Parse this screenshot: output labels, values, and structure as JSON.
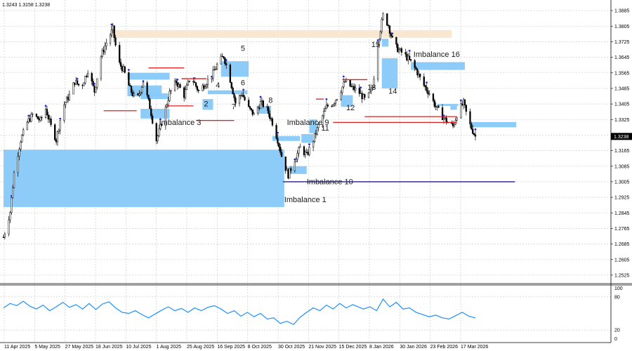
{
  "header": {
    "ohlc": "1.3243 1.3158 1.3238"
  },
  "price_label": "1.3238",
  "chart_data": [
    {
      "type": "candlestick",
      "title": "",
      "ylim": [
        1.2485,
        1.3925
      ],
      "y_ticks": [
        "1.3885",
        "1.3805",
        "1.3725",
        "1.3645",
        "1.3565",
        "1.3485",
        "1.3405",
        "1.3325",
        "1.3245",
        "1.3165",
        "1.3085",
        "1.3005",
        "1.2925",
        "1.2845",
        "1.2765",
        "1.2685",
        "1.2605",
        "1.2525"
      ],
      "x_ticks": [
        "11 Apr 2025",
        "5 May 2025",
        "27 May 2025",
        "18 Jun 2025",
        "10 Jul 2025",
        "1 Aug 2025",
        "25 Aug 2025",
        "16 Sep 2025",
        "8 Oct 2025",
        "30 Oct 2025",
        "21 Nov 2025",
        "15 Dec 2025",
        "8 Jan 2026",
        "30 Jan 2026",
        "23 Feb 2026",
        "17 Mar 2026"
      ],
      "x_range": [
        "2025-04-03",
        "2026-03-27"
      ],
      "close_path": [
        [
          "2025-04-03",
          1.272
        ],
        [
          "2025-04-08",
          1.285
        ],
        [
          "2025-04-11",
          1.305
        ],
        [
          "2025-04-16",
          1.322
        ],
        [
          "2025-04-21",
          1.331
        ],
        [
          "2025-04-25",
          1.335
        ],
        [
          "2025-05-01",
          1.332
        ],
        [
          "2025-05-05",
          1.338
        ],
        [
          "2025-05-09",
          1.329
        ],
        [
          "2025-05-13",
          1.322
        ],
        [
          "2025-05-18",
          1.339
        ],
        [
          "2025-05-23",
          1.345
        ],
        [
          "2025-05-27",
          1.352
        ],
        [
          "2025-06-01",
          1.349
        ],
        [
          "2025-06-06",
          1.358
        ],
        [
          "2025-06-11",
          1.347
        ],
        [
          "2025-06-16",
          1.365
        ],
        [
          "2025-06-20",
          1.372
        ],
        [
          "2025-06-25",
          1.379
        ],
        [
          "2025-06-29",
          1.362
        ],
        [
          "2025-07-03",
          1.358
        ],
        [
          "2025-07-08",
          1.348
        ],
        [
          "2025-07-13",
          1.342
        ],
        [
          "2025-07-18",
          1.352
        ],
        [
          "2025-07-23",
          1.339
        ],
        [
          "2025-07-28",
          1.322
        ],
        [
          "2025-08-02",
          1.333
        ],
        [
          "2025-08-07",
          1.346
        ],
        [
          "2025-08-12",
          1.352
        ],
        [
          "2025-08-18",
          1.345
        ],
        [
          "2025-08-23",
          1.355
        ],
        [
          "2025-08-29",
          1.347
        ],
        [
          "2025-09-03",
          1.351
        ],
        [
          "2025-09-08",
          1.355
        ],
        [
          "2025-09-13",
          1.362
        ],
        [
          "2025-09-17",
          1.365
        ],
        [
          "2025-09-21",
          1.356
        ],
        [
          "2025-09-26",
          1.341
        ],
        [
          "2025-10-01",
          1.346
        ],
        [
          "2025-10-05",
          1.339
        ],
        [
          "2025-10-10",
          1.335
        ],
        [
          "2025-10-15",
          1.341
        ],
        [
          "2025-10-19",
          1.339
        ],
        [
          "2025-10-24",
          1.331
        ],
        [
          "2025-10-28",
          1.322
        ],
        [
          "2025-11-01",
          1.311
        ],
        [
          "2025-11-05",
          1.304
        ],
        [
          "2025-11-10",
          1.312
        ],
        [
          "2025-11-14",
          1.318
        ],
        [
          "2025-11-19",
          1.314
        ],
        [
          "2025-11-24",
          1.322
        ],
        [
          "2025-11-29",
          1.331
        ],
        [
          "2025-12-04",
          1.339
        ],
        [
          "2025-12-09",
          1.341
        ],
        [
          "2025-12-13",
          1.345
        ],
        [
          "2025-12-18",
          1.352
        ],
        [
          "2025-12-23",
          1.349
        ],
        [
          "2025-12-28",
          1.347
        ],
        [
          "2026-01-03",
          1.342
        ],
        [
          "2026-01-08",
          1.349
        ],
        [
          "2026-01-12",
          1.372
        ],
        [
          "2026-01-16",
          1.386
        ],
        [
          "2026-01-20",
          1.381
        ],
        [
          "2026-01-24",
          1.371
        ],
        [
          "2026-01-28",
          1.368
        ],
        [
          "2026-02-01",
          1.366
        ],
        [
          "2026-02-06",
          1.362
        ],
        [
          "2026-02-10",
          1.358
        ],
        [
          "2026-02-15",
          1.351
        ],
        [
          "2026-02-20",
          1.346
        ],
        [
          "2026-02-25",
          1.339
        ],
        [
          "2026-03-02",
          1.334
        ],
        [
          "2026-03-06",
          1.331
        ],
        [
          "2026-03-10",
          1.329
        ],
        [
          "2026-03-14",
          1.337
        ],
        [
          "2026-03-18",
          1.341
        ],
        [
          "2026-03-22",
          1.331
        ],
        [
          "2026-03-27",
          1.3238
        ]
      ],
      "zones": [
        {
          "from": "2025-06-23",
          "to": "2026-03-09",
          "y": [
            1.3745,
            1.3785
          ],
          "color": "#f8e6cf"
        },
        {
          "from": "2025-04-03",
          "to": "2025-11-02",
          "y": [
            1.2875,
            1.317
          ],
          "color": "#87c9f9"
        },
        {
          "from": "2025-07-06",
          "to": "2025-08-07",
          "y": [
            1.353,
            1.3565
          ],
          "color": "#87c9f9"
        },
        {
          "from": "2025-07-06",
          "to": "2025-08-01",
          "y": [
            1.3445,
            1.35
          ],
          "color": "#87c9f9"
        },
        {
          "from": "2025-07-16",
          "to": "2025-08-06",
          "y": [
            1.343,
            1.346
          ],
          "color": "#87c9f9"
        },
        {
          "from": "2025-07-16",
          "to": "2025-08-07",
          "y": [
            1.333,
            1.338
          ],
          "color": "#87c9f9"
        },
        {
          "from": "2025-09-01",
          "to": "2025-09-09",
          "y": [
            1.3375,
            1.343
          ],
          "color": "#87c9f9"
        },
        {
          "from": "2025-09-15",
          "to": "2025-10-06",
          "y": [
            1.3545,
            1.3625
          ],
          "color": "#87c9f9"
        },
        {
          "from": "2025-09-05",
          "to": "2025-10-05",
          "y": [
            1.3455,
            1.3475
          ],
          "color": "#87c9f9"
        },
        {
          "from": "2025-10-12",
          "to": "2025-10-23",
          "y": [
            1.3355,
            1.3395
          ],
          "color": "#87c9f9"
        },
        {
          "from": "2025-10-24",
          "to": "2025-11-14",
          "y": [
            1.3215,
            1.324
          ],
          "color": "#87c9f9"
        },
        {
          "from": "2025-11-05",
          "to": "2025-11-19",
          "y": [
            1.3045,
            1.3085
          ],
          "color": "#87c9f9"
        },
        {
          "from": "2025-11-15",
          "to": "2025-11-24",
          "y": [
            1.3205,
            1.325
          ],
          "color": "#87c9f9"
        },
        {
          "from": "2025-11-21",
          "to": "2025-11-27",
          "y": [
            1.3255,
            1.3325
          ],
          "color": "#87c9f9"
        },
        {
          "from": "2025-12-15",
          "to": "2025-12-24",
          "y": [
            1.339,
            1.345
          ],
          "color": "#87c9f9"
        },
        {
          "from": "2026-01-15",
          "to": "2026-01-20",
          "y": [
            1.37,
            1.374
          ],
          "color": "#87c9f9"
        },
        {
          "from": "2026-01-15",
          "to": "2026-01-27",
          "y": [
            1.3485,
            1.364
          ],
          "color": "#87c9f9"
        },
        {
          "from": "2026-02-06",
          "to": "2026-03-19",
          "y": [
            1.358,
            1.362
          ],
          "color": "#87c9f9"
        },
        {
          "from": "2026-02-26",
          "to": "2026-03-14",
          "y": [
            1.3395,
            1.3405
          ],
          "color": "#87c9f9"
        },
        {
          "from": "2026-03-08",
          "to": "2026-03-13",
          "y": [
            1.3375,
            1.3395
          ],
          "color": "#87c9f9"
        },
        {
          "from": "2026-03-24",
          "to": "2026-04-27",
          "y": [
            1.3285,
            1.3312
          ],
          "color": "#87c9f9"
        }
      ],
      "levels": [
        {
          "from": "2025-06-18",
          "to": "2025-07-13",
          "y": 1.337,
          "color": "#dd1f1f"
        },
        {
          "from": "2025-07-22",
          "to": "2025-08-18",
          "y": 1.359,
          "color": "#dd1f1f"
        },
        {
          "from": "2025-08-05",
          "to": "2025-08-25",
          "y": 1.3395,
          "color": "#dd1f1f"
        },
        {
          "from": "2025-08-27",
          "to": "2025-09-25",
          "y": 1.332,
          "color": "#dd1f1f"
        },
        {
          "from": "2025-08-16",
          "to": "2025-09-04",
          "y": 1.3535,
          "color": "#dd1f1f"
        },
        {
          "from": "2025-12-09",
          "to": "2026-03-13",
          "y": 1.331,
          "color": "#dd1f1f"
        },
        {
          "from": "2026-01-02",
          "to": "2026-03-13",
          "y": 1.334,
          "color": "#dd1f1f"
        },
        {
          "from": "2025-12-16",
          "to": "2026-01-04",
          "y": 1.353,
          "color": "#dd1f1f"
        },
        {
          "from": "2025-11-26",
          "to": "2025-12-02",
          "y": 1.343,
          "color": "#dd1f1f"
        },
        {
          "from": "2025-11-01",
          "to": "2026-04-26",
          "y": 1.3005,
          "color": "#1c1c94"
        }
      ],
      "labels": [
        {
          "date": "2025-11-02",
          "y": 1.2915,
          "text": "Imbalance 1"
        },
        {
          "date": "2025-09-02",
          "y": 1.3408,
          "text": "2"
        },
        {
          "date": "2025-07-30",
          "y": 1.3312,
          "text": "Imbalance 3"
        },
        {
          "date": "2025-09-11",
          "y": 1.3502,
          "text": "4"
        },
        {
          "date": "2025-09-30",
          "y": 1.3692,
          "text": "5"
        },
        {
          "date": "2025-09-30",
          "y": 1.3515,
          "text": "6"
        },
        {
          "date": "2025-09-23",
          "y": 1.3392,
          "text": "7"
        },
        {
          "date": "2025-10-21",
          "y": 1.3425,
          "text": "8"
        },
        {
          "date": "2025-11-04",
          "y": 1.3312,
          "text": "Imbalance 9"
        },
        {
          "date": "2025-11-19",
          "y": 1.3007,
          "text": "Imbalance 10"
        },
        {
          "date": "2025-11-30",
          "y": 1.3282,
          "text": "11"
        },
        {
          "date": "2025-12-19",
          "y": 1.3387,
          "text": "12"
        },
        {
          "date": "2026-01-04",
          "y": 1.3492,
          "text": "13"
        },
        {
          "date": "2026-01-20",
          "y": 1.3472,
          "text": "14"
        },
        {
          "date": "2026-01-07",
          "y": 1.3712,
          "text": "15"
        },
        {
          "date": "2026-02-08",
          "y": 1.3662,
          "text": "Imbalance 16"
        }
      ]
    },
    {
      "type": "line",
      "title": "",
      "ylim": [
        0,
        100
      ],
      "y_ticks": [
        "100",
        "80",
        "20",
        "0"
      ],
      "points": [
        [
          "2025-04-03",
          60
        ],
        [
          "2025-04-08",
          68
        ],
        [
          "2025-04-13",
          64
        ],
        [
          "2025-04-18",
          72
        ],
        [
          "2025-04-23",
          63
        ],
        [
          "2025-04-28",
          58
        ],
        [
          "2025-05-03",
          65
        ],
        [
          "2025-05-08",
          55
        ],
        [
          "2025-05-13",
          62
        ],
        [
          "2025-05-18",
          70
        ],
        [
          "2025-05-23",
          61
        ],
        [
          "2025-05-28",
          66
        ],
        [
          "2025-06-02",
          58
        ],
        [
          "2025-06-07",
          68
        ],
        [
          "2025-06-12",
          57
        ],
        [
          "2025-06-17",
          67
        ],
        [
          "2025-06-22",
          71
        ],
        [
          "2025-06-27",
          60
        ],
        [
          "2025-07-02",
          52
        ],
        [
          "2025-07-07",
          50
        ],
        [
          "2025-07-12",
          55
        ],
        [
          "2025-07-17",
          48
        ],
        [
          "2025-07-22",
          42
        ],
        [
          "2025-07-27",
          49
        ],
        [
          "2025-08-01",
          56
        ],
        [
          "2025-08-06",
          62
        ],
        [
          "2025-08-11",
          55
        ],
        [
          "2025-08-16",
          59
        ],
        [
          "2025-08-21",
          52
        ],
        [
          "2025-08-26",
          60
        ],
        [
          "2025-08-31",
          55
        ],
        [
          "2025-09-05",
          61
        ],
        [
          "2025-09-10",
          64
        ],
        [
          "2025-09-15",
          58
        ],
        [
          "2025-09-20",
          50
        ],
        [
          "2025-09-25",
          55
        ],
        [
          "2025-09-30",
          45
        ],
        [
          "2025-10-05",
          52
        ],
        [
          "2025-10-10",
          44
        ],
        [
          "2025-10-15",
          50
        ],
        [
          "2025-10-20",
          40
        ],
        [
          "2025-10-25",
          42
        ],
        [
          "2025-10-30",
          32
        ],
        [
          "2025-11-04",
          36
        ],
        [
          "2025-11-09",
          30
        ],
        [
          "2025-11-14",
          43
        ],
        [
          "2025-11-19",
          52
        ],
        [
          "2025-11-24",
          60
        ],
        [
          "2025-11-29",
          55
        ],
        [
          "2025-12-04",
          65
        ],
        [
          "2025-12-09",
          58
        ],
        [
          "2025-12-14",
          68
        ],
        [
          "2025-12-19",
          60
        ],
        [
          "2025-12-24",
          66
        ],
        [
          "2026-01-01",
          58
        ],
        [
          "2026-01-06",
          62
        ],
        [
          "2026-01-11",
          55
        ],
        [
          "2026-01-16",
          76
        ],
        [
          "2026-01-21",
          62
        ],
        [
          "2026-01-26",
          70
        ],
        [
          "2026-01-31",
          58
        ],
        [
          "2026-02-05",
          60
        ],
        [
          "2026-02-10",
          52
        ],
        [
          "2026-02-15",
          48
        ],
        [
          "2026-02-20",
          44
        ],
        [
          "2026-02-25",
          47
        ],
        [
          "2026-03-02",
          42
        ],
        [
          "2026-03-07",
          40
        ],
        [
          "2026-03-12",
          46
        ],
        [
          "2026-03-17",
          52
        ],
        [
          "2026-03-22",
          45
        ],
        [
          "2026-03-27",
          42
        ]
      ]
    }
  ]
}
